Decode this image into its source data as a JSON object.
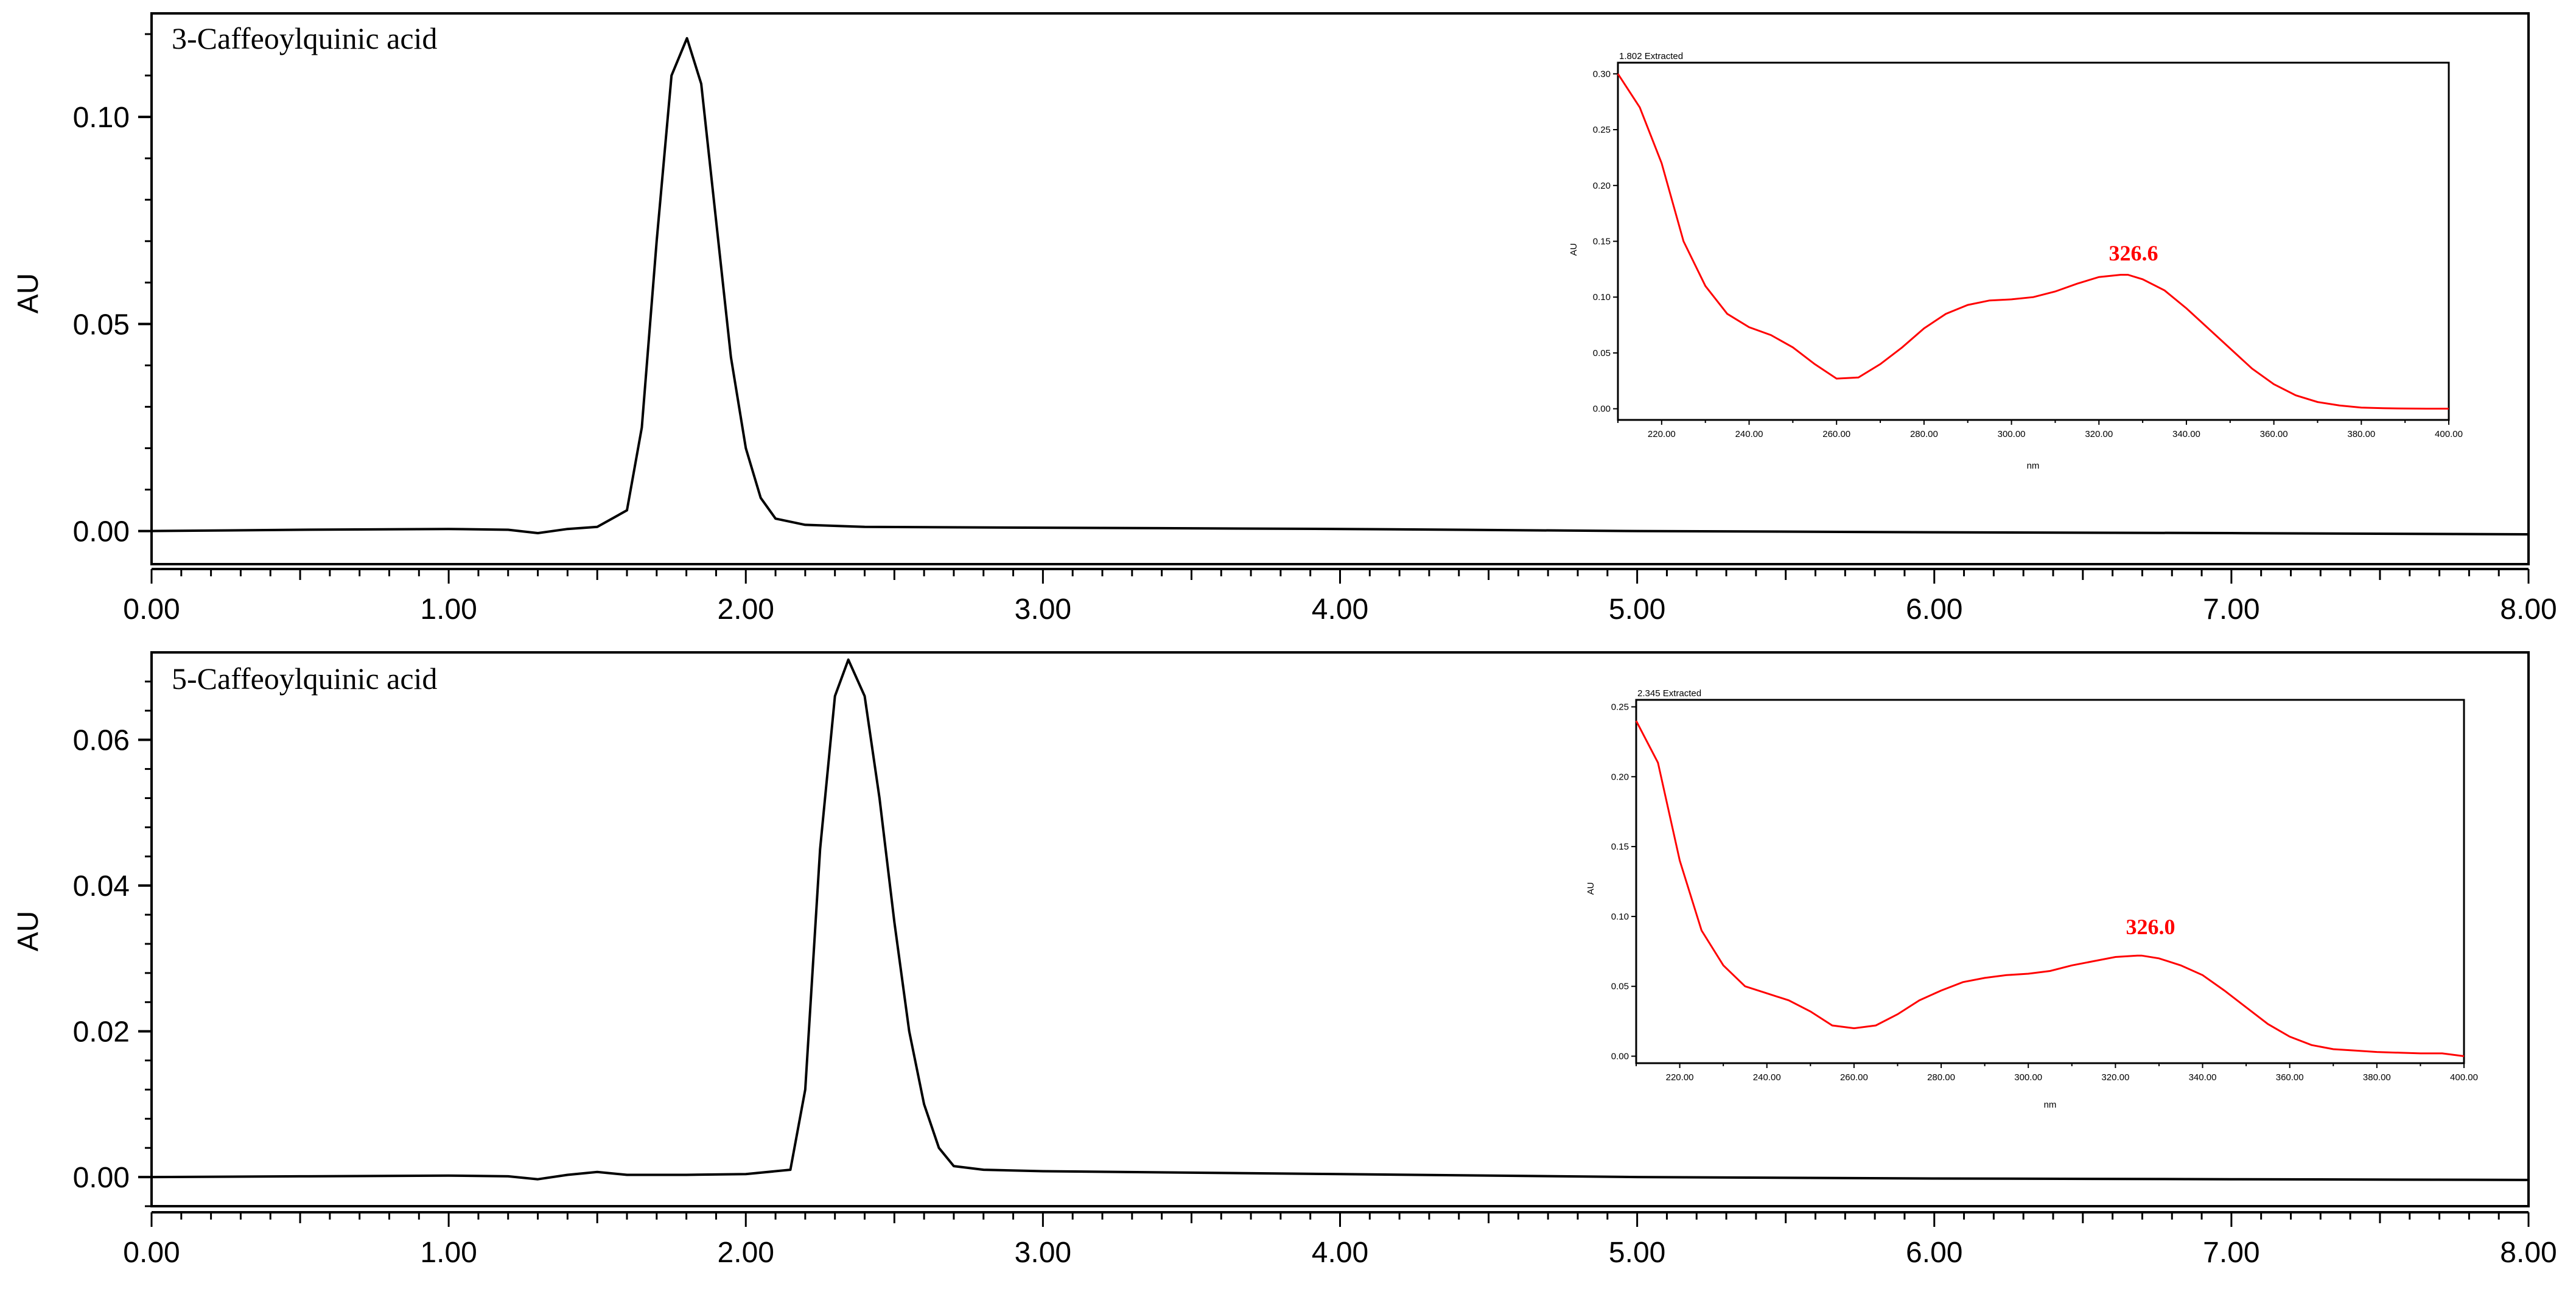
{
  "panels": [
    {
      "title": "3-Caffeoylquinic acid",
      "ylabel": "AU",
      "xticks": [
        "0.00",
        "1.00",
        "2.00",
        "3.00",
        "4.00",
        "5.00",
        "6.00",
        "7.00",
        "8.00"
      ],
      "yticks": [
        "0.00",
        "0.05",
        "0.10"
      ],
      "inset": {
        "header": "1.802 Extracted",
        "ylabel": "AU",
        "xlabel": "nm",
        "xticks": [
          "220.00",
          "240.00",
          "260.00",
          "280.00",
          "300.00",
          "320.00",
          "340.00",
          "360.00",
          "380.00",
          "400.00"
        ],
        "yticks": [
          "0.00",
          "0.05",
          "0.10",
          "0.15",
          "0.20",
          "0.25",
          "0.30"
        ],
        "peak_label": "326.6"
      }
    },
    {
      "title": "5-Caffeoylquinic acid",
      "ylabel": "AU",
      "xticks": [
        "0.00",
        "1.00",
        "2.00",
        "3.00",
        "4.00",
        "5.00",
        "6.00",
        "7.00",
        "8.00"
      ],
      "yticks": [
        "0.00",
        "0.02",
        "0.04",
        "0.06"
      ],
      "inset": {
        "header": "2.345 Extracted",
        "ylabel": "AU",
        "xlabel": "nm",
        "xticks": [
          "220.00",
          "240.00",
          "260.00",
          "280.00",
          "300.00",
          "320.00",
          "340.00",
          "360.00",
          "380.00",
          "400.00"
        ],
        "yticks": [
          "0.00",
          "0.05",
          "0.10",
          "0.15",
          "0.20",
          "0.25"
        ],
        "peak_label": "326.0"
      }
    }
  ],
  "colors": {
    "trace": "#000000",
    "spectrum": "#ff0000",
    "axis": "#000000"
  },
  "chart_data": [
    {
      "type": "line",
      "title": "3-Caffeoylquinic acid",
      "xlabel": "",
      "ylabel": "AU",
      "xlim": [
        0,
        8
      ],
      "ylim": [
        -0.008,
        0.125
      ],
      "grid": false,
      "series": [
        {
          "x": [
            0.0,
            0.5,
            1.0,
            1.2,
            1.3,
            1.4,
            1.5,
            1.6,
            1.65,
            1.7,
            1.75,
            1.802,
            1.85,
            1.9,
            1.95,
            2.0,
            2.05,
            2.1,
            2.2,
            2.4,
            3.0,
            4.0,
            5.0,
            6.0,
            7.0,
            8.0
          ],
          "y": [
            0.0,
            0.0003,
            0.0005,
            0.0003,
            -0.0005,
            0.0005,
            0.001,
            0.005,
            0.025,
            0.07,
            0.11,
            0.119,
            0.108,
            0.075,
            0.042,
            0.02,
            0.008,
            0.003,
            0.0015,
            0.001,
            0.0008,
            0.0005,
            0.0,
            -0.0003,
            -0.0005,
            -0.0008
          ]
        }
      ]
    },
    {
      "type": "line",
      "title": "",
      "xlabel": "nm",
      "ylabel": "AU",
      "xlim": [
        210,
        400
      ],
      "ylim": [
        -0.01,
        0.31
      ],
      "series": [
        {
          "x": [
            210,
            215,
            220,
            225,
            230,
            235,
            240,
            245,
            250,
            255,
            260,
            265,
            270,
            275,
            280,
            285,
            290,
            295,
            300,
            305,
            310,
            315,
            320,
            325,
            326.6,
            330,
            335,
            340,
            345,
            350,
            355,
            360,
            365,
            370,
            375,
            380,
            385,
            390,
            395,
            400
          ],
          "y": [
            0.3,
            0.27,
            0.22,
            0.15,
            0.11,
            0.085,
            0.073,
            0.066,
            0.055,
            0.04,
            0.027,
            0.028,
            0.04,
            0.055,
            0.072,
            0.085,
            0.093,
            0.097,
            0.098,
            0.1,
            0.105,
            0.112,
            0.118,
            0.12,
            0.12,
            0.116,
            0.106,
            0.09,
            0.072,
            0.054,
            0.036,
            0.022,
            0.012,
            0.006,
            0.003,
            0.001,
            0.0005,
            0.0002,
            0.0001,
            0.0001
          ]
        }
      ]
    },
    {
      "type": "line",
      "title": "5-Caffeoylquinic acid",
      "xlabel": "",
      "ylabel": "AU",
      "xlim": [
        0,
        8
      ],
      "ylim": [
        -0.004,
        0.072
      ],
      "grid": false,
      "series": [
        {
          "x": [
            0.0,
            0.5,
            1.0,
            1.2,
            1.3,
            1.4,
            1.5,
            1.6,
            1.8,
            2.0,
            2.15,
            2.2,
            2.25,
            2.3,
            2.345,
            2.4,
            2.45,
            2.5,
            2.55,
            2.6,
            2.65,
            2.7,
            2.8,
            3.0,
            4.0,
            5.0,
            6.0,
            7.0,
            8.0
          ],
          "y": [
            0.0,
            0.0001,
            0.0002,
            0.0001,
            -0.0003,
            0.0003,
            0.0007,
            0.0003,
            0.0003,
            0.0004,
            0.001,
            0.012,
            0.045,
            0.066,
            0.071,
            0.066,
            0.052,
            0.035,
            0.02,
            0.01,
            0.004,
            0.0015,
            0.001,
            0.0008,
            0.0004,
            0.0,
            -0.0002,
            -0.0003,
            -0.0004
          ]
        }
      ]
    },
    {
      "type": "line",
      "title": "",
      "xlabel": "nm",
      "ylabel": "AU",
      "xlim": [
        210,
        400
      ],
      "ylim": [
        -0.005,
        0.255
      ],
      "series": [
        {
          "x": [
            210,
            215,
            220,
            225,
            230,
            235,
            240,
            245,
            250,
            255,
            260,
            265,
            270,
            275,
            280,
            285,
            290,
            295,
            300,
            305,
            310,
            315,
            320,
            325,
            326.0,
            330,
            335,
            340,
            345,
            350,
            355,
            360,
            365,
            370,
            375,
            380,
            385,
            390,
            395,
            400
          ],
          "y": [
            0.24,
            0.21,
            0.14,
            0.09,
            0.065,
            0.05,
            0.045,
            0.04,
            0.032,
            0.022,
            0.02,
            0.022,
            0.03,
            0.04,
            0.047,
            0.053,
            0.056,
            0.058,
            0.059,
            0.061,
            0.065,
            0.068,
            0.071,
            0.072,
            0.072,
            0.07,
            0.065,
            0.058,
            0.047,
            0.035,
            0.023,
            0.014,
            0.008,
            0.005,
            0.004,
            0.003,
            0.0025,
            0.002,
            0.002,
            0.0
          ]
        }
      ]
    }
  ]
}
